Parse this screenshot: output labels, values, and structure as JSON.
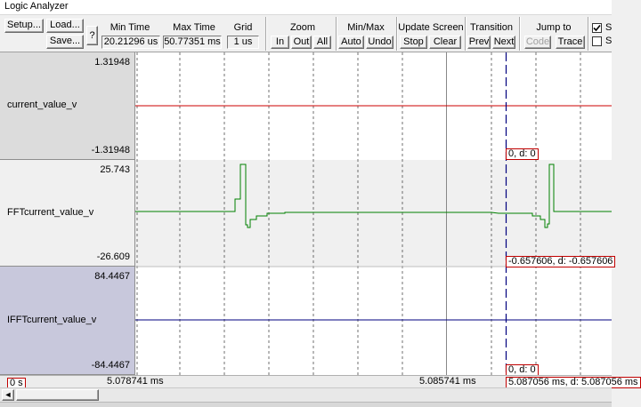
{
  "window": {
    "title": "Logic Analyzer"
  },
  "toolbar": {
    "setup_label": "Setup...",
    "load_label": "Load...",
    "save_label": "Save...",
    "help_label": "?",
    "min_time": {
      "label": "Min Time",
      "value": "20.21296 us"
    },
    "max_time": {
      "label": "Max Time",
      "value": "50.77351 ms"
    },
    "grid": {
      "label": "Grid",
      "value": "1 us"
    },
    "zoom": {
      "label": "Zoom",
      "in": "In",
      "out": "Out",
      "all": "All"
    },
    "minmax": {
      "label": "Min/Max",
      "auto": "Auto",
      "undo": "Undo"
    },
    "update": {
      "label": "Update Screen",
      "stop": "Stop",
      "clear": "Clear"
    },
    "transition": {
      "label": "Transition",
      "prev": "Prev",
      "next": "Next"
    },
    "jumpto": {
      "label": "Jump to",
      "code": "Code",
      "trace": "Trace"
    },
    "opt1_label": "S",
    "opt2_label": "S"
  },
  "signals": [
    {
      "name": "current_value_v",
      "max": "1.31948",
      "min": "-1.31948",
      "color": "#cc0000",
      "cursor_value": "0,  d: 0"
    },
    {
      "name": "FFTcurrent_value_v",
      "max": "25.743",
      "min": "-26.609",
      "color": "#008000",
      "cursor_value": "-0.657606,  d: -0.657606"
    },
    {
      "name": "IFFTcurrent_value_v",
      "max": "84.4467",
      "min": "-84.4467",
      "color": "#00007f",
      "cursor_value": "0,  d: 0"
    }
  ],
  "status": {
    "origin": "0 s",
    "left_time": "5.078741 ms",
    "mid_time": "5.085741 ms",
    "cursor_time": "5.087056 ms,  d: 5.087056 ms"
  },
  "colors": {
    "cursor": "#00007f",
    "grid": "#000000",
    "selected_label_bg": "#c8c8dc"
  }
}
